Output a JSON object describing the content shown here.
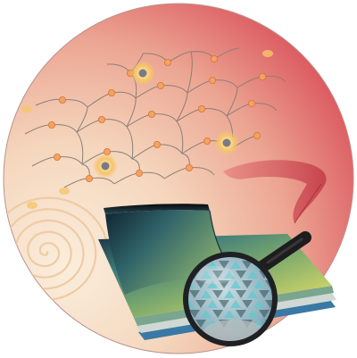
{
  "image": {
    "description_free": true,
    "palette": {
      "disk_warm_light": "#f8e6cf",
      "disk_mid": "#efb7a3",
      "disk_red": "#d94a55",
      "chain_line": "#8a7f78",
      "monomer_fill": "#f3a35f",
      "monomer_core": "#d7743b",
      "metal_glow": "#f6c56a",
      "metal_center": "#7a7a86",
      "film_yellow": "#c9cf5f",
      "film_green": "#5f9a78",
      "film_teal": "#2f6d72",
      "film_dark": "#1a3c4a",
      "film_edge_blue": "#3d6f9a",
      "magnifier_handle": "#1d1d1f",
      "magnifier_rim": "#202124",
      "lens_tint": "#8fb4c6",
      "crystal_cyan": "#62c8cf",
      "crystal_dark": "#2e4f55",
      "spiral_stroke": "#efc9a0",
      "ribbon_red": "#c9434b"
    }
  }
}
